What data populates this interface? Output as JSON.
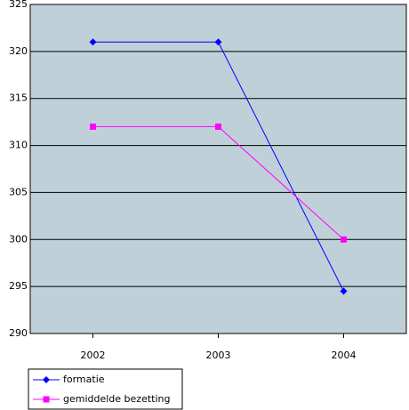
{
  "chart_data": {
    "type": "line",
    "categories": [
      "2002",
      "2003",
      "2004"
    ],
    "series": [
      {
        "name": "formatie",
        "color": "#0000ff",
        "marker": "diamond",
        "values": [
          321,
          321,
          294.5
        ]
      },
      {
        "name": "gemiddelde bezetting",
        "color": "#ff00ff",
        "marker": "square",
        "values": [
          312,
          312,
          300
        ]
      }
    ],
    "ylim": [
      290,
      325
    ],
    "yticks": [
      290,
      295,
      300,
      305,
      310,
      315,
      320,
      325
    ],
    "grid": true,
    "legend": "bottom-left",
    "plot_background": "#c0d0d8"
  }
}
